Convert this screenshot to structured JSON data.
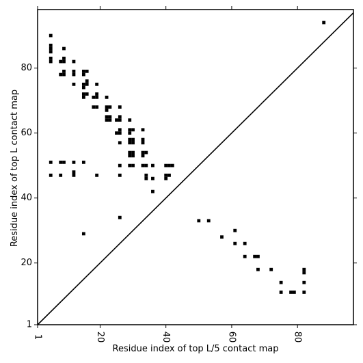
{
  "chart_data": {
    "type": "scatter",
    "xlabel": "Residue index of top L/5 contact map",
    "ylabel": "Residue index of top L contact map",
    "xlim": [
      1,
      97
    ],
    "ylim": [
      1,
      98
    ],
    "x_ticks": [
      1,
      20,
      40,
      60,
      80
    ],
    "y_ticks": [
      1,
      20,
      40,
      60,
      80
    ],
    "diagonal": true,
    "grid": false,
    "series": [
      {
        "values": [
          [
            88,
            94
          ],
          [
            82,
            14
          ],
          [
            82,
            18
          ],
          [
            82,
            17
          ],
          [
            82,
            11
          ],
          [
            78,
            11
          ],
          [
            79,
            11
          ],
          [
            75,
            11
          ],
          [
            75,
            14
          ],
          [
            72,
            18
          ],
          [
            68,
            18
          ],
          [
            67,
            22
          ],
          [
            68,
            22
          ],
          [
            64,
            22
          ],
          [
            64,
            26
          ],
          [
            61,
            26
          ],
          [
            61,
            30
          ],
          [
            57,
            28
          ],
          [
            53,
            33
          ],
          [
            50,
            33
          ],
          [
            5,
            90
          ],
          [
            5,
            86
          ],
          [
            5,
            87
          ],
          [
            5,
            85
          ],
          [
            5,
            83
          ],
          [
            5,
            82
          ],
          [
            9,
            86
          ],
          [
            8,
            82
          ],
          [
            9,
            83
          ],
          [
            9,
            82
          ],
          [
            8,
            78
          ],
          [
            9,
            78
          ],
          [
            9,
            79
          ],
          [
            12,
            82
          ],
          [
            12,
            79
          ],
          [
            12,
            78
          ],
          [
            12,
            75
          ],
          [
            15,
            79
          ],
          [
            16,
            79
          ],
          [
            15,
            78
          ],
          [
            15,
            75
          ],
          [
            15,
            74
          ],
          [
            16,
            76
          ],
          [
            16,
            75
          ],
          [
            15,
            72
          ],
          [
            16,
            72
          ],
          [
            15,
            71
          ],
          [
            19,
            75
          ],
          [
            18,
            71
          ],
          [
            19,
            71
          ],
          [
            19,
            72
          ],
          [
            18,
            68
          ],
          [
            19,
            68
          ],
          [
            22,
            71
          ],
          [
            22,
            68
          ],
          [
            23,
            68
          ],
          [
            22,
            67
          ],
          [
            22,
            65
          ],
          [
            23,
            65
          ],
          [
            22,
            64
          ],
          [
            23,
            64
          ],
          [
            25,
            64
          ],
          [
            26,
            64
          ],
          [
            26,
            65
          ],
          [
            26,
            68
          ],
          [
            25,
            60
          ],
          [
            26,
            61
          ],
          [
            26,
            60
          ],
          [
            26,
            57
          ],
          [
            29,
            64
          ],
          [
            29,
            61
          ],
          [
            29,
            60
          ],
          [
            30,
            61
          ],
          [
            29,
            58
          ],
          [
            30,
            58
          ],
          [
            29,
            57
          ],
          [
            30,
            57
          ],
          [
            29,
            54
          ],
          [
            30,
            54
          ],
          [
            29,
            53
          ],
          [
            30,
            53
          ],
          [
            33,
            61
          ],
          [
            33,
            58
          ],
          [
            33,
            57
          ],
          [
            33,
            54
          ],
          [
            34,
            54
          ],
          [
            33,
            53
          ],
          [
            29,
            50
          ],
          [
            30,
            50
          ],
          [
            26,
            50
          ],
          [
            26,
            47
          ],
          [
            33,
            50
          ],
          [
            34,
            50
          ],
          [
            34,
            47
          ],
          [
            34,
            46
          ],
          [
            36,
            50
          ],
          [
            36,
            46
          ],
          [
            36,
            42
          ],
          [
            40,
            50
          ],
          [
            41,
            50
          ],
          [
            42,
            50
          ],
          [
            40,
            47
          ],
          [
            41,
            47
          ],
          [
            40,
            46
          ],
          [
            5,
            51
          ],
          [
            8,
            51
          ],
          [
            9,
            51
          ],
          [
            12,
            51
          ],
          [
            15,
            51
          ],
          [
            5,
            47
          ],
          [
            8,
            47
          ],
          [
            12,
            48
          ],
          [
            12,
            47
          ],
          [
            19,
            47
          ],
          [
            26,
            34
          ],
          [
            15,
            29
          ]
        ]
      }
    ]
  }
}
